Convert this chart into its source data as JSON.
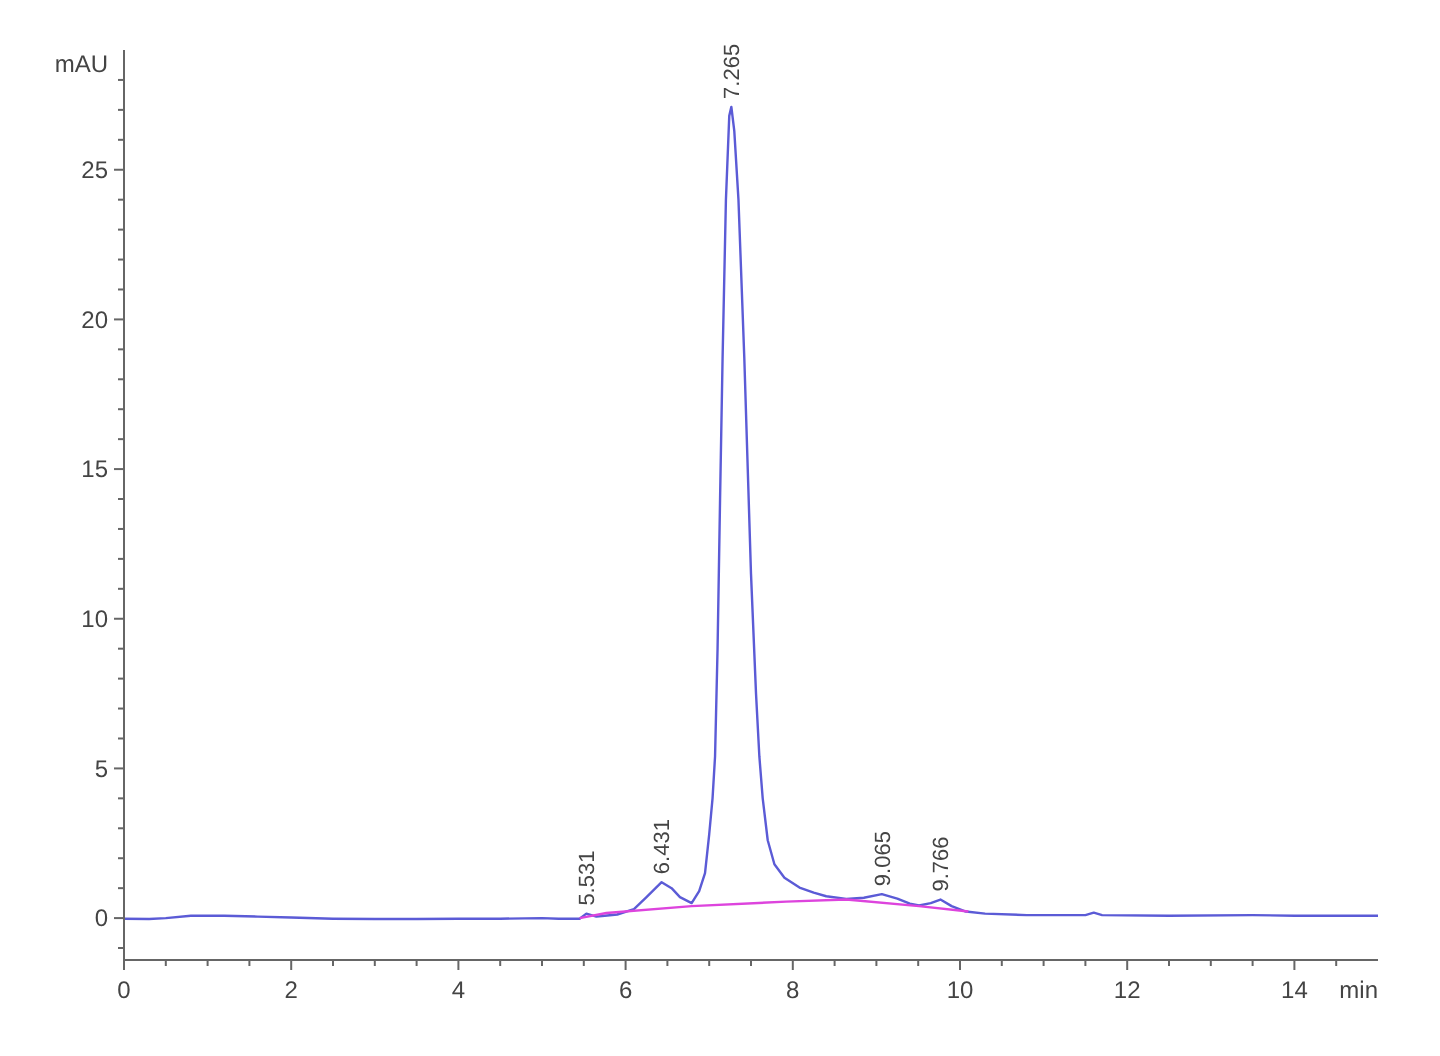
{
  "chart_data": {
    "type": "line",
    "xlabel": "min",
    "ylabel": "mAU",
    "xlim": [
      0,
      15
    ],
    "ylim": [
      -1.4,
      29
    ],
    "xticks": [
      0,
      {
        "value": 0.5,
        "label": null
      },
      {
        "value": 1,
        "label": null
      },
      {
        "value": 1.5,
        "label": null
      },
      2,
      {
        "value": 2.5,
        "label": null
      },
      {
        "value": 3,
        "label": null
      },
      {
        "value": 3.5,
        "label": null
      },
      4,
      {
        "value": 4.5,
        "label": null
      },
      {
        "value": 5,
        "label": null
      },
      {
        "value": 5.5,
        "label": null
      },
      6,
      {
        "value": 6.5,
        "label": null
      },
      {
        "value": 7,
        "label": null
      },
      {
        "value": 7.5,
        "label": null
      },
      8,
      {
        "value": 8.5,
        "label": null
      },
      {
        "value": 9,
        "label": null
      },
      {
        "value": 9.5,
        "label": null
      },
      10,
      {
        "value": 10.5,
        "label": null
      },
      {
        "value": 11,
        "label": null
      },
      {
        "value": 11.5,
        "label": null
      },
      12,
      {
        "value": 12.5,
        "label": null
      },
      {
        "value": 13,
        "label": null
      },
      {
        "value": 13.5,
        "label": null
      },
      14,
      {
        "value": 14.5,
        "label": null
      }
    ],
    "yticks": [
      {
        "value": -1,
        "label": null
      },
      0,
      {
        "value": 1,
        "label": null
      },
      {
        "value": 2,
        "label": null
      },
      {
        "value": 3,
        "label": null
      },
      {
        "value": 4,
        "label": null
      },
      5,
      {
        "value": 6,
        "label": null
      },
      {
        "value": 7,
        "label": null
      },
      {
        "value": 8,
        "label": null
      },
      {
        "value": 9,
        "label": null
      },
      10,
      {
        "value": 11,
        "label": null
      },
      {
        "value": 12,
        "label": null
      },
      {
        "value": 13,
        "label": null
      },
      {
        "value": 14,
        "label": null
      },
      15,
      {
        "value": 16,
        "label": null
      },
      {
        "value": 17,
        "label": null
      },
      {
        "value": 18,
        "label": null
      },
      {
        "value": 19,
        "label": null
      },
      20,
      {
        "value": 21,
        "label": null
      },
      {
        "value": 22,
        "label": null
      },
      {
        "value": 23,
        "label": null
      },
      {
        "value": 24,
        "label": null
      },
      25,
      {
        "value": 26,
        "label": null
      },
      {
        "value": 27,
        "label": null
      },
      {
        "value": 28,
        "label": null
      }
    ],
    "marker": "none",
    "line_style": "solid",
    "series": [
      {
        "color": "#5b5bd6",
        "x": [
          0,
          0.3,
          0.5,
          0.8,
          1.2,
          1.6,
          2.0,
          2.5,
          3.0,
          3.5,
          4.0,
          4.5,
          5.0,
          5.2,
          5.45,
          5.531,
          5.65,
          5.75,
          5.9,
          6.1,
          6.25,
          6.431,
          6.55,
          6.65,
          6.79,
          6.88,
          6.95,
          7.0,
          7.04,
          7.07,
          7.1,
          7.13,
          7.16,
          7.2,
          7.24,
          7.265,
          7.3,
          7.35,
          7.42,
          7.5,
          7.56,
          7.6,
          7.64,
          7.7,
          7.78,
          7.9,
          8.08,
          8.25,
          8.4,
          8.64,
          8.85,
          9.065,
          9.25,
          9.4,
          9.51,
          9.65,
          9.766,
          9.9,
          10.07,
          10.3,
          10.8,
          11.5,
          11.6,
          11.7,
          12.5,
          13.5,
          14.0,
          15.0
        ],
        "values": [
          -0.02,
          -0.03,
          0.0,
          0.08,
          0.08,
          0.05,
          0.02,
          -0.02,
          -0.03,
          -0.03,
          -0.02,
          -0.02,
          0.0,
          -0.02,
          -0.02,
          0.15,
          0.05,
          0.08,
          0.12,
          0.3,
          0.7,
          1.2,
          1.0,
          0.7,
          0.5,
          0.9,
          1.5,
          2.8,
          4.0,
          5.4,
          9,
          14,
          18.7,
          24,
          26.8,
          27.1,
          26.3,
          24,
          18.7,
          11.5,
          7.5,
          5.4,
          4.0,
          2.6,
          1.8,
          1.35,
          1.02,
          0.85,
          0.73,
          0.64,
          0.68,
          0.8,
          0.65,
          0.48,
          0.42,
          0.5,
          0.62,
          0.4,
          0.22,
          0.15,
          0.1,
          0.1,
          0.18,
          0.1,
          0.08,
          0.1,
          0.08,
          0.08
        ]
      },
      {
        "color": "#dd44dd",
        "x": [
          5.45,
          5.77,
          6.79,
          7.92,
          8.64,
          9.51,
          10.1
        ],
        "values": [
          0.0,
          0.17,
          0.4,
          0.55,
          0.62,
          0.4,
          0.22
        ]
      }
    ],
    "annotations": [
      {
        "text": "5.531",
        "x": 5.531,
        "y": 0.15
      },
      {
        "text": "6.431",
        "x": 6.431,
        "y": 1.2
      },
      {
        "text": "7.265",
        "x": 7.265,
        "y": 27.1
      },
      {
        "text": "9.065",
        "x": 9.065,
        "y": 0.8
      },
      {
        "text": "9.766",
        "x": 9.766,
        "y": 0.62
      }
    ]
  }
}
